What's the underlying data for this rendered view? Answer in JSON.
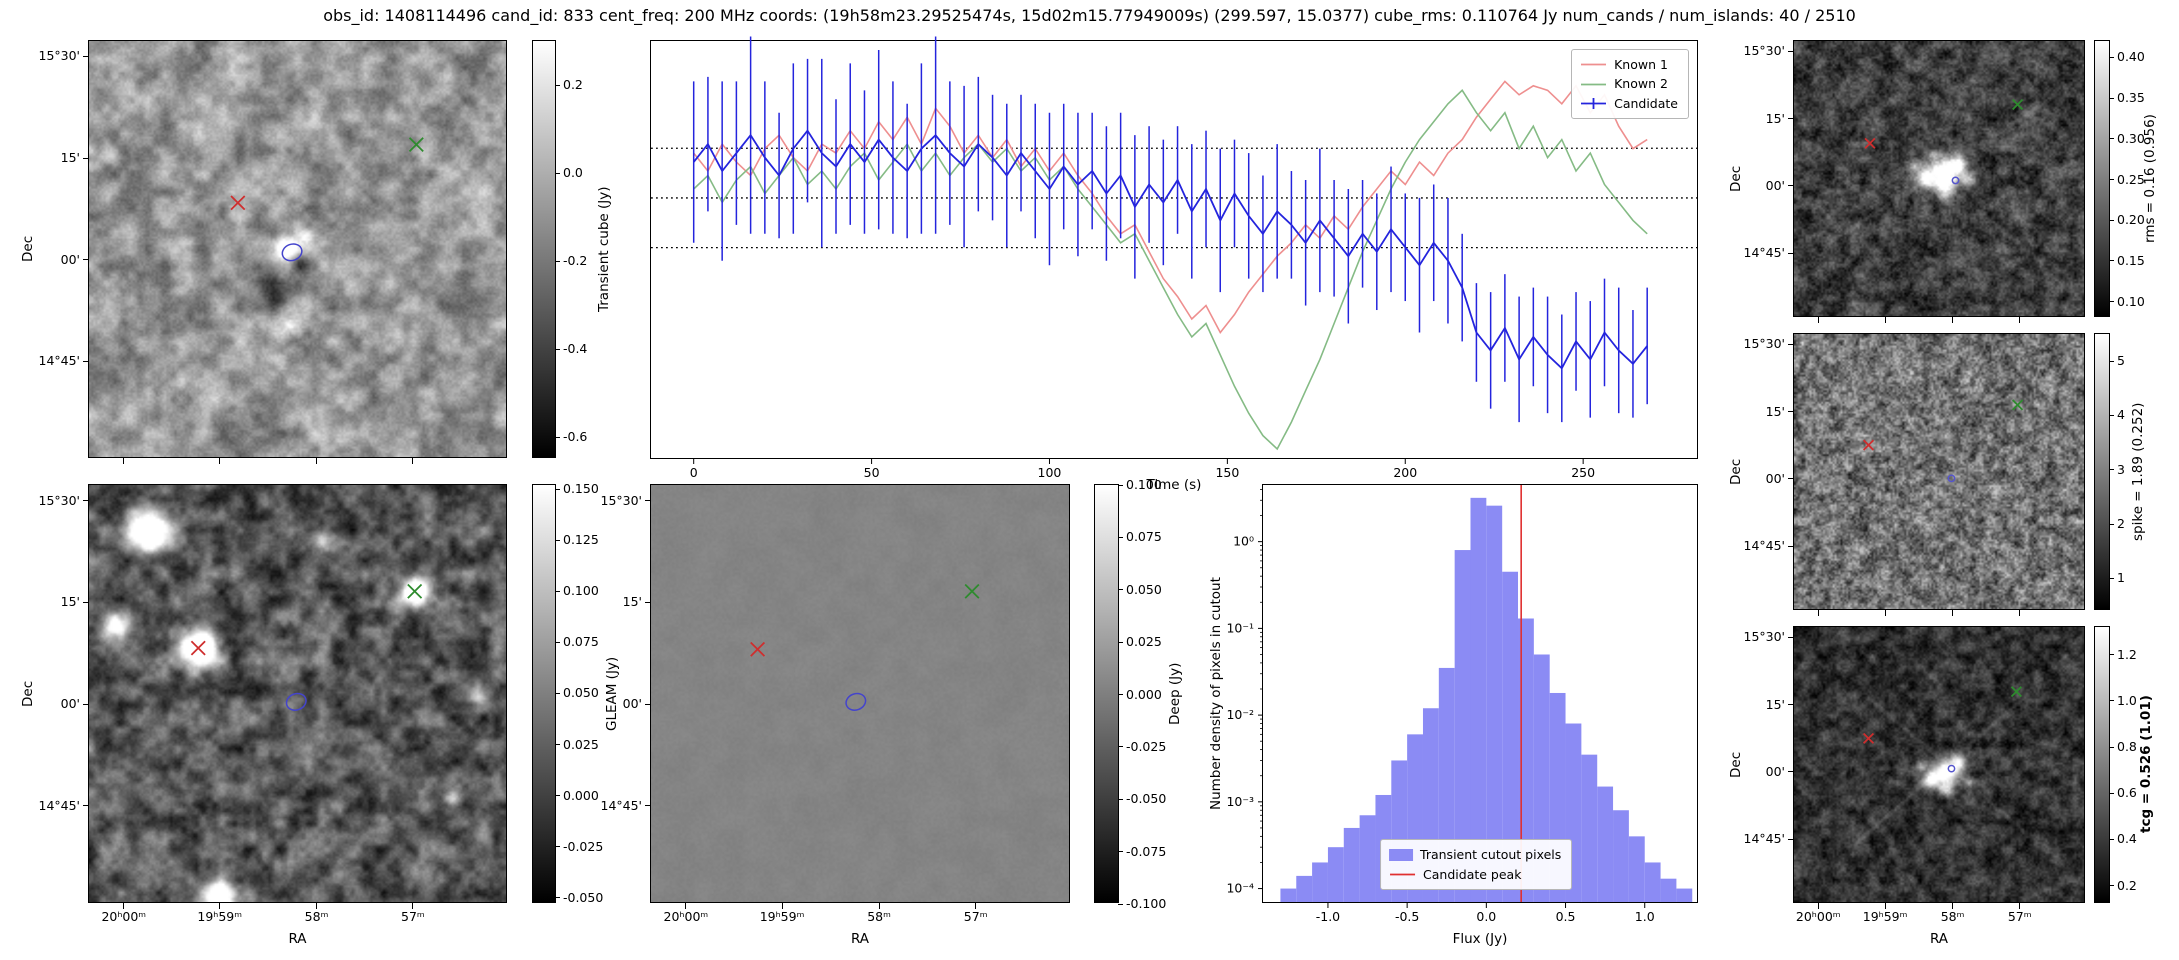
{
  "title": "obs_id: 1408114496 cand_id: 833 cent_freq: 200 MHz coords: (19h58m23.29525474s, 15d02m15.77949009s) (299.597, 15.0377) cube_rms: 0.110764 Jy num_cands / num_islands: 40 / 2510",
  "axes": {
    "dec_label": "Dec",
    "ra_label": "RA",
    "dec_ticks": {
      "fracs": [
        0.037,
        0.28,
        0.523,
        0.766
      ],
      "labels": [
        "15°30'",
        "15'",
        "00'",
        "14°45'"
      ]
    },
    "ra_ticks": {
      "fracs": [
        0.083,
        0.312,
        0.543,
        0.773
      ],
      "labels": [
        "20ʰ00ᵐ",
        "19ʰ59ᵐ",
        "58ᵐ",
        "57ᵐ"
      ]
    }
  },
  "chart_data": [
    {
      "id": "candidate_lightcurve",
      "type": "line",
      "xlabel": "Time (s)",
      "xlim": [
        -12,
        282
      ],
      "ylim": [
        -0.58,
        0.35
      ],
      "xticks": [
        0,
        50,
        100,
        150,
        200,
        250
      ],
      "hlines": [
        0.110764,
        0.0,
        -0.110764
      ],
      "x": [
        0,
        4,
        8,
        12,
        16,
        20,
        24,
        28,
        32,
        36,
        40,
        44,
        48,
        52,
        56,
        60,
        64,
        68,
        72,
        76,
        80,
        84,
        88,
        92,
        96,
        100,
        104,
        108,
        112,
        116,
        120,
        124,
        128,
        132,
        136,
        140,
        144,
        148,
        152,
        156,
        160,
        164,
        168,
        172,
        176,
        180,
        184,
        188,
        192,
        196,
        200,
        204,
        208,
        212,
        216,
        220,
        224,
        228,
        232,
        236,
        240,
        244,
        248,
        252,
        256,
        260,
        264,
        268
      ],
      "series": [
        {
          "name": "Known 1",
          "color": "#ee8f8f",
          "values": [
            0.1,
            0.06,
            0.12,
            0.08,
            0.05,
            0.11,
            0.14,
            0.09,
            0.06,
            0.12,
            0.1,
            0.15,
            0.11,
            0.17,
            0.13,
            0.18,
            0.12,
            0.2,
            0.16,
            0.1,
            0.14,
            0.09,
            0.13,
            0.07,
            0.11,
            0.06,
            0.1,
            0.05,
            0.01,
            -0.04,
            -0.08,
            -0.06,
            -0.12,
            -0.18,
            -0.22,
            -0.27,
            -0.24,
            -0.3,
            -0.26,
            -0.21,
            -0.17,
            -0.13,
            -0.1,
            -0.06,
            -0.09,
            -0.04,
            -0.07,
            -0.02,
            0.02,
            0.06,
            0.03,
            0.08,
            0.05,
            0.1,
            0.13,
            0.18,
            0.22,
            0.26,
            0.23,
            0.25,
            0.24,
            0.21,
            0.25,
            0.19,
            0.23,
            0.16,
            0.11,
            0.13
          ]
        },
        {
          "name": "Known 2",
          "color": "#85bb85",
          "values": [
            0.02,
            0.05,
            -0.01,
            0.04,
            0.07,
            0.01,
            0.05,
            0.09,
            0.03,
            0.06,
            0.02,
            0.07,
            0.1,
            0.04,
            0.08,
            0.12,
            0.06,
            0.1,
            0.05,
            0.09,
            0.12,
            0.08,
            0.11,
            0.06,
            0.09,
            0.04,
            0.07,
            0.02,
            -0.02,
            -0.06,
            -0.1,
            -0.08,
            -0.14,
            -0.2,
            -0.26,
            -0.31,
            -0.28,
            -0.35,
            -0.42,
            -0.48,
            -0.53,
            -0.56,
            -0.5,
            -0.43,
            -0.36,
            -0.28,
            -0.2,
            -0.12,
            -0.05,
            0.02,
            0.08,
            0.13,
            0.17,
            0.21,
            0.24,
            0.19,
            0.15,
            0.19,
            0.11,
            0.16,
            0.09,
            0.13,
            0.06,
            0.1,
            0.03,
            -0.01,
            -0.05,
            -0.08
          ]
        },
        {
          "name": "Candidate",
          "color": "#2424dd",
          "values": [
            0.08,
            0.12,
            0.06,
            0.1,
            0.14,
            0.09,
            0.05,
            0.11,
            0.15,
            0.1,
            0.07,
            0.12,
            0.08,
            0.13,
            0.09,
            0.06,
            0.11,
            0.14,
            0.1,
            0.07,
            0.12,
            0.09,
            0.05,
            0.1,
            0.06,
            0.02,
            0.07,
            0.03,
            0.06,
            0.01,
            0.05,
            -0.02,
            0.03,
            -0.01,
            0.04,
            -0.03,
            0.02,
            -0.05,
            0.01,
            -0.04,
            -0.08,
            -0.03,
            -0.06,
            -0.1,
            -0.05,
            -0.09,
            -0.13,
            -0.08,
            -0.12,
            -0.07,
            -0.11,
            -0.15,
            -0.1,
            -0.14,
            -0.2,
            -0.3,
            -0.34,
            -0.29,
            -0.36,
            -0.31,
            -0.35,
            -0.38,
            -0.32,
            -0.36,
            -0.3,
            -0.34,
            -0.37,
            -0.33
          ],
          "yerr": [
            0.18,
            0.15,
            0.2,
            0.16,
            0.22,
            0.17,
            0.14,
            0.19,
            0.16,
            0.21,
            0.15,
            0.18,
            0.16,
            0.2,
            0.17,
            0.15,
            0.19,
            0.22,
            0.16,
            0.18,
            0.15,
            0.14,
            0.16,
            0.13,
            0.15,
            0.17,
            0.14,
            0.16,
            0.13,
            0.15,
            0.14,
            0.16,
            0.13,
            0.14,
            0.12,
            0.15,
            0.13,
            0.16,
            0.12,
            0.14,
            0.13,
            0.15,
            0.12,
            0.14,
            0.16,
            0.13,
            0.15,
            0.12,
            0.13,
            0.14,
            0.12,
            0.15,
            0.13,
            0.14,
            0.12,
            0.11,
            0.13,
            0.12,
            0.14,
            0.11,
            0.13,
            0.12,
            0.11,
            0.13,
            0.12,
            0.14,
            0.12,
            0.13
          ]
        }
      ]
    },
    {
      "id": "flux_histogram",
      "type": "bar",
      "xlabel": "Flux (Jy)",
      "ylabel": "Number density of pixels in cutout",
      "xlim": [
        -1.41,
        1.33
      ],
      "ylog": true,
      "ylim": [
        7e-05,
        4.5
      ],
      "xticks": [
        -1.0,
        -0.5,
        0.0,
        0.5,
        1.0
      ],
      "xtick_labels": [
        "-1.0",
        "-0.5",
        "0.0",
        "0.5",
        "1.0"
      ],
      "ytick_values": [
        1,
        0.1,
        0.01,
        0.001,
        0.0001
      ],
      "ytick_labels": [
        "10⁰",
        "10⁻¹",
        "10⁻²",
        "10⁻³",
        "10⁻⁴"
      ],
      "bin_edges": [
        -1.3,
        -1.2,
        -1.1,
        -1.0,
        -0.9,
        -0.8,
        -0.7,
        -0.6,
        -0.5,
        -0.4,
        -0.3,
        -0.2,
        -0.1,
        0.0,
        0.1,
        0.2,
        0.3,
        0.4,
        0.5,
        0.6,
        0.7,
        0.8,
        0.9,
        1.0,
        1.1,
        1.2,
        1.3
      ],
      "densities": [
        0.0001,
        0.00014,
        0.0002,
        0.0003,
        0.0005,
        0.0007,
        0.0012,
        0.003,
        0.006,
        0.012,
        0.035,
        0.8,
        3.2,
        2.6,
        0.45,
        0.13,
        0.05,
        0.018,
        0.008,
        0.0035,
        0.0015,
        0.0008,
        0.0004,
        0.0002,
        0.00013,
        0.0001
      ],
      "candidate_peak": 0.22,
      "bar_color": "#8b8bf4",
      "peak_color": "#e03030",
      "legend": [
        "Transient cutout pixels",
        "Candidate peak"
      ]
    },
    {
      "id": "transient_cutout",
      "type": "heatmap",
      "colorbar": {
        "label": "Transient cube (Jy)",
        "vmin": -0.65,
        "vmax": 0.3,
        "tick_values": [
          0.2,
          0.0,
          -0.2,
          -0.4,
          -0.6
        ],
        "tick_labels": [
          "0.2",
          "0.0",
          "-0.2",
          "-0.4",
          "-0.6"
        ]
      },
      "markers": [
        {
          "shape": "x",
          "color": "#cf2e2e",
          "x": 0.357,
          "y": 0.389
        },
        {
          "shape": "x",
          "color": "#2e8b2e",
          "x": 0.785,
          "y": 0.249
        },
        {
          "shape": "contour",
          "color": "#4444cc",
          "x": 0.487,
          "y": 0.508
        }
      ]
    },
    {
      "id": "gleam_cutout",
      "type": "heatmap",
      "colorbar": {
        "label": "GLEAM (Jy)",
        "vmin": -0.053,
        "vmax": 0.152,
        "tick_values": [
          0.15,
          0.125,
          0.1,
          0.075,
          0.05,
          0.025,
          0.0,
          -0.025,
          -0.05
        ],
        "tick_labels": [
          "0.150",
          "0.125",
          "0.100",
          "0.075",
          "0.050",
          "0.025",
          "0.000",
          "-0.025",
          "-0.050"
        ]
      },
      "markers": [
        {
          "shape": "x",
          "color": "#cf2e2e",
          "x": 0.262,
          "y": 0.391
        },
        {
          "shape": "x",
          "color": "#2e8b2e",
          "x": 0.781,
          "y": 0.255
        },
        {
          "shape": "contour",
          "color": "#4444cc",
          "x": 0.497,
          "y": 0.52
        }
      ]
    },
    {
      "id": "deep_cutout",
      "type": "heatmap",
      "colorbar": {
        "label": "Deep (Jy)",
        "vmin": -0.1,
        "vmax": 0.1,
        "tick_values": [
          0.1,
          0.075,
          0.05,
          0.025,
          0.0,
          -0.025,
          -0.05,
          -0.075,
          -0.1
        ],
        "tick_labels": [
          "0.100",
          "0.075",
          "0.050",
          "0.025",
          "0.000",
          "-0.025",
          "-0.050",
          "-0.075",
          "-0.100"
        ]
      },
      "markers": [
        {
          "shape": "x",
          "color": "#cf2e2e",
          "x": 0.255,
          "y": 0.394
        },
        {
          "shape": "x",
          "color": "#2e8b2e",
          "x": 0.768,
          "y": 0.255
        },
        {
          "shape": "contour",
          "color": "#4444cc",
          "x": 0.49,
          "y": 0.52
        }
      ]
    },
    {
      "id": "rms_map",
      "type": "heatmap",
      "colorbar": {
        "label": "rms = 0.16 (0.956)",
        "vmin": 0.08,
        "vmax": 0.42,
        "tick_values": [
          0.4,
          0.35,
          0.3,
          0.25,
          0.2,
          0.15,
          0.1
        ],
        "tick_labels": [
          "0.40",
          "0.35",
          "0.30",
          "0.25",
          "0.20",
          "0.15",
          "0.10"
        ]
      },
      "markers": [
        {
          "shape": "x",
          "color": "#cf2e2e",
          "x": 0.262,
          "y": 0.372
        },
        {
          "shape": "x",
          "color": "#2e8b2e",
          "x": 0.771,
          "y": 0.231
        },
        {
          "shape": "dot",
          "color": "#5555cc",
          "x": 0.557,
          "y": 0.507
        }
      ]
    },
    {
      "id": "spike_map",
      "type": "heatmap",
      "colorbar": {
        "label": "spike = 1.89 (0.252)",
        "vmin": 0.4,
        "vmax": 5.5,
        "tick_values": [
          5,
          4,
          3,
          2,
          1
        ],
        "tick_labels": [
          "5",
          "4",
          "3",
          "2",
          "1"
        ]
      },
      "markers": [
        {
          "shape": "x",
          "color": "#cf2e2e",
          "x": 0.257,
          "y": 0.404
        },
        {
          "shape": "x",
          "color": "#2e8b2e",
          "x": 0.771,
          "y": 0.258
        },
        {
          "shape": "dot",
          "color": "#5555cc",
          "x": 0.543,
          "y": 0.525
        }
      ]
    },
    {
      "id": "tcg_map",
      "type": "heatmap",
      "colorbar": {
        "label": "tcg = 0.526 (1.01)",
        "bold": true,
        "vmin": 0.12,
        "vmax": 1.32,
        "tick_values": [
          1.2,
          1.0,
          0.8,
          0.6,
          0.4,
          0.2
        ],
        "tick_labels": [
          "1.2",
          "1.0",
          "0.8",
          "0.6",
          "0.4",
          "0.2"
        ]
      },
      "markers": [
        {
          "shape": "x",
          "color": "#cf2e2e",
          "x": 0.257,
          "y": 0.405
        },
        {
          "shape": "x",
          "color": "#2e8b2e",
          "x": 0.767,
          "y": 0.235
        },
        {
          "shape": "dot",
          "color": "#5555cc",
          "x": 0.543,
          "y": 0.515
        }
      ]
    }
  ]
}
